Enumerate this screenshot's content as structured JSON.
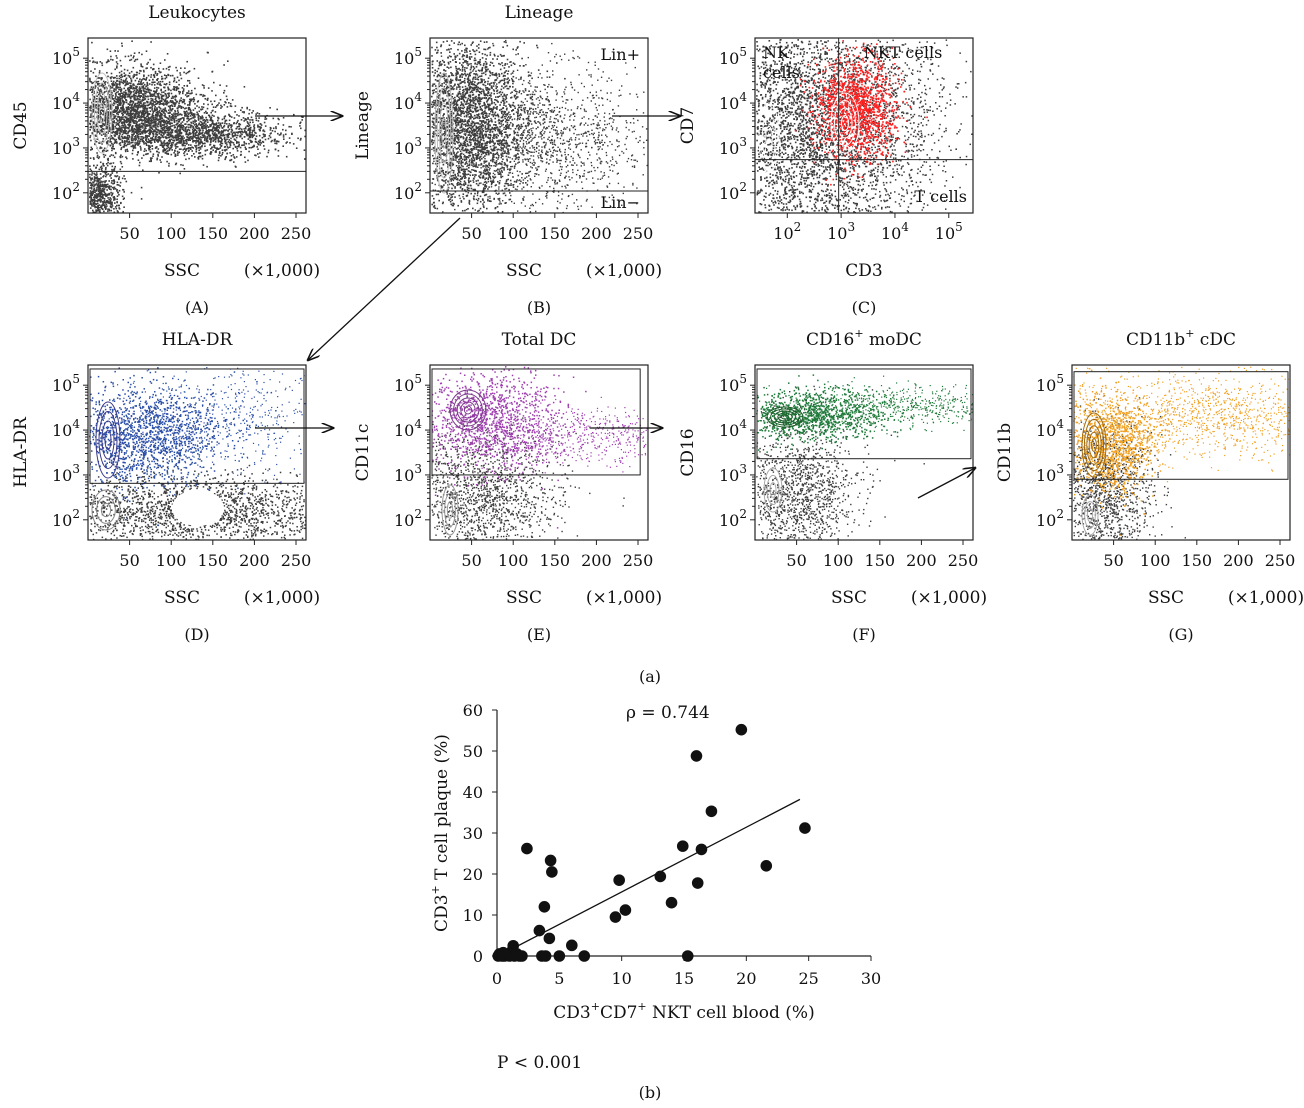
{
  "chart_data": [
    {
      "type": "scatter",
      "panel_label": "(A)",
      "title": "Leukocytes",
      "xlabel": "SSC",
      "xunit": "(×1,000)",
      "ylabel": "CD45",
      "x_ticks": [
        "50",
        "100",
        "150",
        "200",
        "250"
      ],
      "xlim": [
        0,
        262
      ],
      "y_ticks": [
        "10^2",
        "10^3",
        "10^4",
        "10^5"
      ],
      "ylog": true,
      "gate": {
        "type": "horizontal-threshold",
        "x_from": 0,
        "x_to": 262,
        "y": 300
      },
      "color": "#444444"
    },
    {
      "type": "scatter",
      "panel_label": "(B)",
      "title": "Lineage",
      "xlabel": "SSC",
      "xunit": "(×1,000)",
      "ylabel": "Lineage",
      "x_ticks": [
        "50",
        "100",
        "150",
        "200",
        "250"
      ],
      "xlim": [
        0,
        262
      ],
      "y_ticks": [
        "10^2",
        "10^3",
        "10^4",
        "10^5"
      ],
      "ylog": true,
      "gate": {
        "type": "horizontal-threshold",
        "x_from": 0,
        "x_to": 262,
        "y": 110
      },
      "annotations": [
        "Lin+",
        "Lin−"
      ],
      "color": "#444444"
    },
    {
      "type": "scatter",
      "panel_label": "(C)",
      "title": "",
      "xlabel": "CD3",
      "xunit": "",
      "ylabel": "CD7",
      "x_ticks": [
        "10^2",
        "10^3",
        "10^4",
        "10^5"
      ],
      "xlog": true,
      "y_ticks": [
        "10^2",
        "10^3",
        "10^4",
        "10^5"
      ],
      "ylog": true,
      "gate": {
        "type": "quadrant",
        "x": 900,
        "y": 550
      },
      "annotations": [
        "NK",
        "cells",
        "NKT cells",
        "T cells"
      ],
      "color": "#444444",
      "highlight_color": "#ff2020"
    },
    {
      "type": "scatter",
      "panel_label": "(D)",
      "title": "HLA-DR",
      "xlabel": "SSC",
      "xunit": "(×1,000)",
      "ylabel": "HLA-DR",
      "x_ticks": [
        "50",
        "100",
        "150",
        "200",
        "250"
      ],
      "xlim": [
        0,
        262
      ],
      "y_ticks": [
        "10^2",
        "10^3",
        "10^4",
        "10^5"
      ],
      "ylog": true,
      "gate": {
        "type": "rectangle",
        "x_from": 0,
        "x_to": 262,
        "y_from": 650,
        "y_to": 230000
      },
      "color": "#444444",
      "highlight_color": "#2b4fa8"
    },
    {
      "type": "scatter",
      "panel_label": "(E)",
      "title": "Total DC",
      "xlabel": "SSC",
      "xunit": "(×1,000)",
      "ylabel": "CD11c",
      "x_ticks": [
        "50",
        "100",
        "150",
        "200",
        "250"
      ],
      "xlim": [
        0,
        262
      ],
      "y_ticks": [
        "10^2",
        "10^3",
        "10^4",
        "10^5"
      ],
      "ylog": true,
      "gate": {
        "type": "rectangle",
        "x_from": 0,
        "x_to": 255,
        "y_from": 1000,
        "y_to": 230000
      },
      "color": "#444444",
      "highlight_color": "#a040b0"
    },
    {
      "type": "scatter",
      "panel_label": "(F)",
      "title": "CD16⁺ moDC",
      "xlabel": "SSC",
      "xunit": "(×1,000)",
      "ylabel": "CD16",
      "x_ticks": [
        "50",
        "100",
        "150",
        "200",
        "250"
      ],
      "xlim": [
        0,
        262
      ],
      "y_ticks": [
        "10^2",
        "10^3",
        "10^4",
        "10^5"
      ],
      "ylog": true,
      "gate": {
        "type": "rectangle",
        "x_from": 0,
        "x_to": 262,
        "y_from": 2300,
        "y_to": 230000
      },
      "color": "#444444",
      "highlight_color": "#1f7a3a"
    },
    {
      "type": "scatter",
      "panel_label": "(G)",
      "title": "CD11b⁺ cDC",
      "xlabel": "SSC",
      "xunit": "(×1,000)",
      "ylabel": "CD11b",
      "x_ticks": [
        "50",
        "100",
        "150",
        "200",
        "250"
      ],
      "xlim": [
        0,
        262
      ],
      "y_ticks": [
        "10^2",
        "10^3",
        "10^4",
        "10^5"
      ],
      "ylog": true,
      "gate": {
        "type": "rectangle",
        "x_from": 0,
        "x_to": 262,
        "y_from": 800,
        "y_to": 200000
      },
      "color": "#444444",
      "highlight_color": "#f0a020"
    },
    {
      "type": "scatter",
      "panel_label": "(b)",
      "xlabel": "CD3⁺CD7⁺ NKT cell blood (%)",
      "ylabel": "CD3⁺ T cell plaque (%)",
      "xlim": [
        0,
        30
      ],
      "ylim": [
        0,
        60
      ],
      "x_ticks": [
        0,
        5,
        10,
        15,
        20,
        25,
        30
      ],
      "y_ticks": [
        0,
        10,
        20,
        30,
        40,
        50,
        60
      ],
      "annotation_rho": "ρ = 0.744",
      "annotation_p": "P < 0.001",
      "points": [
        [
          0.1,
          0
        ],
        [
          0.2,
          0.5
        ],
        [
          0.4,
          0
        ],
        [
          0.6,
          0
        ],
        [
          0.8,
          0.3
        ],
        [
          1.0,
          0
        ],
        [
          1.2,
          1.2
        ],
        [
          1.4,
          0
        ],
        [
          1.6,
          0.5
        ],
        [
          1.8,
          0
        ],
        [
          2.0,
          0
        ],
        [
          0.5,
          0.8
        ],
        [
          1.3,
          2.5
        ],
        [
          2.4,
          26.2
        ],
        [
          3.4,
          6.2
        ],
        [
          3.6,
          0
        ],
        [
          3.8,
          12.0
        ],
        [
          3.9,
          0
        ],
        [
          4.2,
          4.3
        ],
        [
          4.3,
          23.3
        ],
        [
          4.4,
          20.5
        ],
        [
          5.0,
          0
        ],
        [
          6.0,
          2.6
        ],
        [
          7.0,
          0
        ],
        [
          9.5,
          9.5
        ],
        [
          9.8,
          18.5
        ],
        [
          10.3,
          11.2
        ],
        [
          13.1,
          19.4
        ],
        [
          14.0,
          13.0
        ],
        [
          14.9,
          26.8
        ],
        [
          15.3,
          0
        ],
        [
          16.0,
          48.8
        ],
        [
          16.1,
          17.8
        ],
        [
          16.4,
          26.0
        ],
        [
          17.2,
          35.3
        ],
        [
          19.6,
          55.2
        ],
        [
          21.6,
          22.0
        ],
        [
          24.7,
          31.2
        ]
      ],
      "trend_line": {
        "x": [
          0.3,
          24.3
        ],
        "y": [
          0.3,
          38.2
        ]
      }
    }
  ],
  "figure_labels": {
    "part_a": "(a)",
    "part_b": "(b)"
  }
}
